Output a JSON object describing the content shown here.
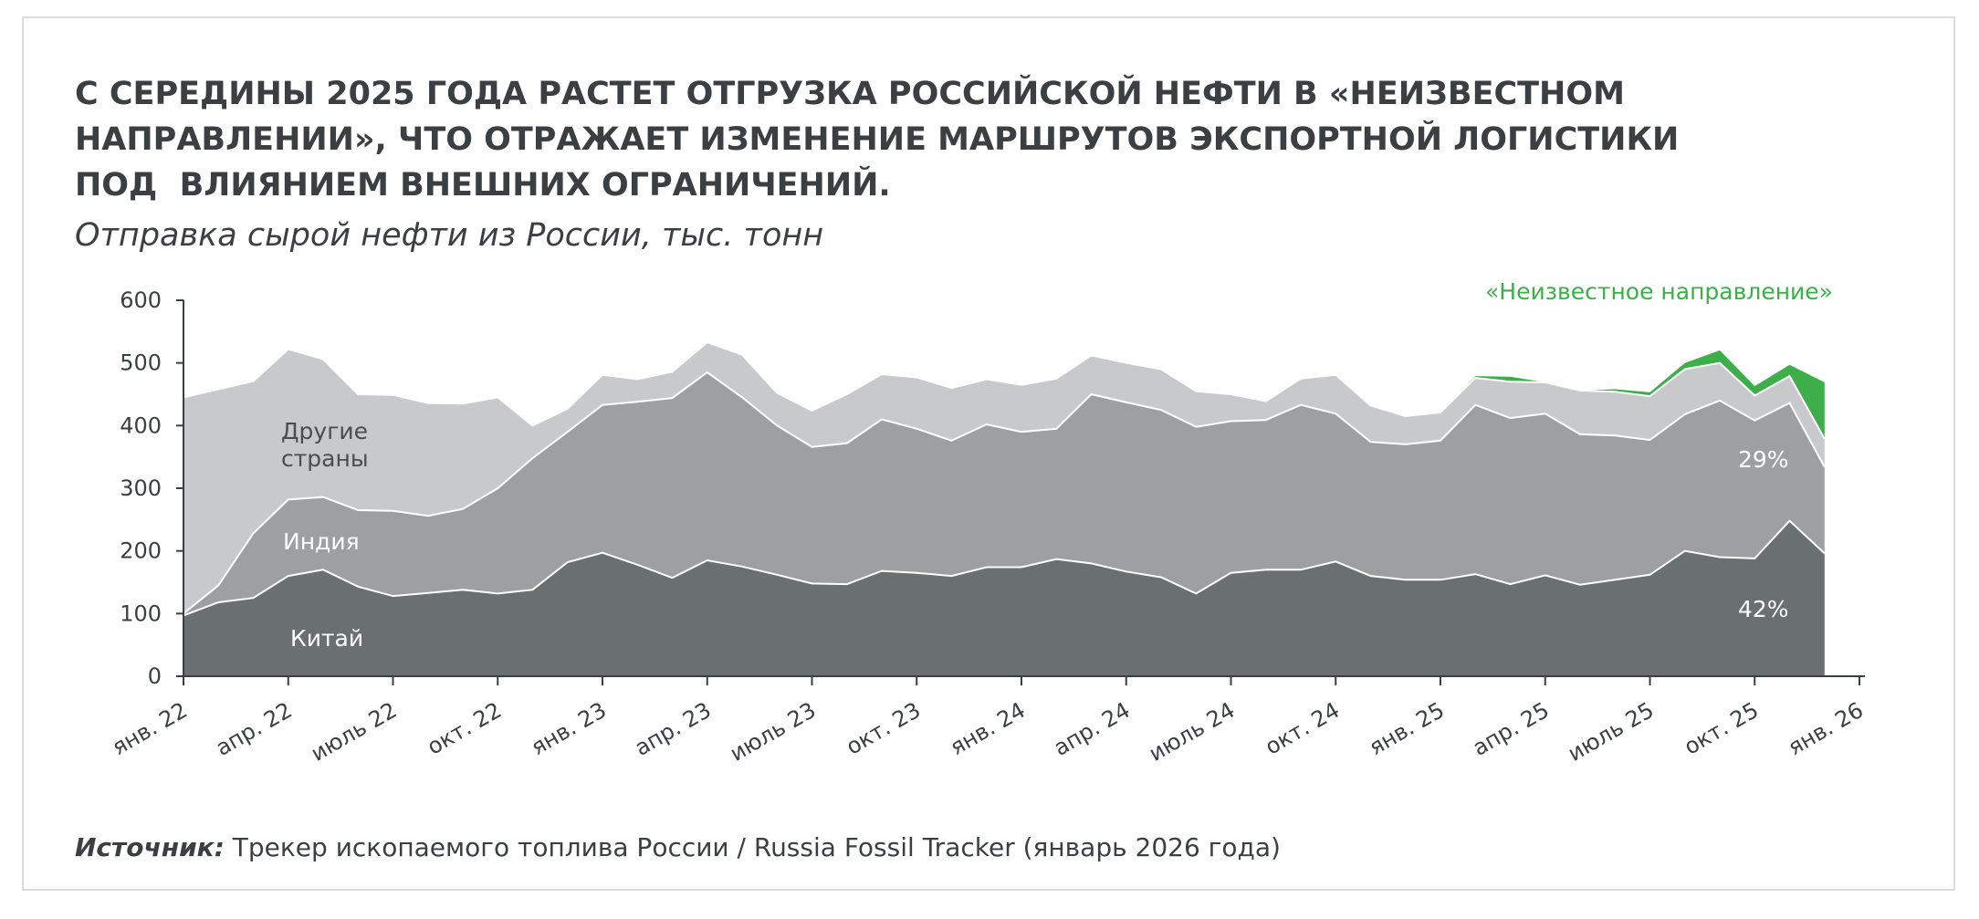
{
  "title_lines": [
    "С СЕРЕДИНЫ 2025 ГОДА РАСТЕТ ОТГРУЗКА РОССИЙСКОЙ НЕФТИ В «НЕИЗВЕСТНОМ",
    "НАПРАВЛЕНИИ», ЧТО ОТРАЖАЕТ ИЗМЕНЕНИЕ МАРШРУТОВ ЭКСПОРТНОЙ ЛОГИСТИКИ",
    "ПОД  ВЛИЯНИЕМ ВНЕШНИХ ОГРАНИЧЕНИЙ."
  ],
  "subtitle": "Отправка сырой нефти из России, тыс. тонн",
  "source": {
    "label": "Источник:",
    "text": " Трекер ископаемого топлива России / Russia Fossil Tracker (январь 2026 года)"
  },
  "colors": {
    "china": "#6a6f72",
    "india": "#9d9fa1",
    "other": "#c8c9cb",
    "unknown": "#3dae4a",
    "separator": "#ffffff",
    "axis": "#3c3f42"
  },
  "chart_data": {
    "type": "area",
    "stacked": true,
    "title": "Отправка сырой нефти из России, тыс. тонн",
    "ylim": [
      0,
      600
    ],
    "yticks": [
      0,
      100,
      200,
      300,
      400,
      500,
      600
    ],
    "x_tick_labels": [
      "янв. 22",
      "апр. 22",
      "июль 22",
      "окт. 22",
      "янв. 23",
      "апр. 23",
      "июль 23",
      "окт. 23",
      "янв. 24",
      "апр. 24",
      "июль 24",
      "окт. 24",
      "янв. 25",
      "апр. 25",
      "июль 25",
      "окт. 25",
      "янв. 26"
    ],
    "x": [
      "янв. 22",
      "фев. 22",
      "мар. 22",
      "апр. 22",
      "май 22",
      "июнь 22",
      "июль 22",
      "авг. 22",
      "сен. 22",
      "окт. 22",
      "ноя. 22",
      "дек. 22",
      "янв. 23",
      "фев. 23",
      "мар. 23",
      "апр. 23",
      "май 23",
      "июнь 23",
      "июль 23",
      "авг. 23",
      "сен. 23",
      "окт. 23",
      "ноя. 23",
      "дек. 23",
      "янв. 24",
      "фев. 24",
      "мар. 24",
      "апр. 24",
      "май 24",
      "июнь 24",
      "июль 24",
      "авг. 24",
      "сен. 24",
      "окт. 24",
      "ноя. 24",
      "дек. 24",
      "янв. 25",
      "фев. 25",
      "мар. 25",
      "апр. 25",
      "май 25",
      "июнь 25",
      "июль 25",
      "авг. 25",
      "сен. 25",
      "окт. 25",
      "ноя. 25",
      "дек. 25"
    ],
    "series": [
      {
        "name": "Китай",
        "key": "china",
        "values": [
          97,
          118,
          125,
          160,
          170,
          143,
          128,
          133,
          138,
          132,
          138,
          182,
          197,
          178,
          157,
          185,
          175,
          162,
          148,
          147,
          168,
          165,
          160,
          174,
          174,
          187,
          180,
          167,
          158,
          132,
          165,
          170,
          170,
          183,
          160,
          154,
          154,
          163,
          147,
          161,
          146,
          154,
          162,
          200,
          190,
          188,
          248,
          196
        ]
      },
      {
        "name": "Индия",
        "key": "india",
        "values": [
          3,
          27,
          103,
          122,
          116,
          122,
          136,
          123,
          129,
          168,
          210,
          208,
          236,
          260,
          287,
          300,
          270,
          238,
          218,
          225,
          242,
          230,
          216,
          228,
          216,
          208,
          270,
          270,
          267,
          266,
          242,
          239,
          263,
          236,
          214,
          216,
          222,
          270,
          265,
          258,
          240,
          230,
          215,
          218,
          250,
          220,
          188,
          138
        ]
      },
      {
        "name": "Другие страны",
        "key": "other",
        "values": [
          345,
          313,
          243,
          240,
          220,
          185,
          185,
          180,
          168,
          145,
          52,
          37,
          48,
          36,
          42,
          48,
          68,
          52,
          58,
          78,
          72,
          82,
          84,
          72,
          75,
          80,
          62,
          63,
          65,
          57,
          43,
          30,
          42,
          62,
          58,
          45,
          45,
          43,
          58,
          50,
          70,
          70,
          70,
          72,
          60,
          40,
          43,
          45
        ]
      },
      {
        "name": "«Неизвестное направление»",
        "key": "unknown",
        "values": [
          0,
          0,
          0,
          0,
          0,
          0,
          0,
          0,
          0,
          0,
          0,
          0,
          0,
          0,
          0,
          0,
          0,
          0,
          0,
          0,
          0,
          0,
          0,
          0,
          0,
          0,
          0,
          0,
          0,
          0,
          0,
          0,
          0,
          0,
          0,
          0,
          0,
          3,
          8,
          0,
          0,
          4,
          6,
          10,
          20,
          15,
          18,
          90
        ]
      }
    ],
    "annotations": [
      {
        "series": "india",
        "text": "29%"
      },
      {
        "series": "china",
        "text": "42%"
      }
    ],
    "legend": "inline"
  }
}
